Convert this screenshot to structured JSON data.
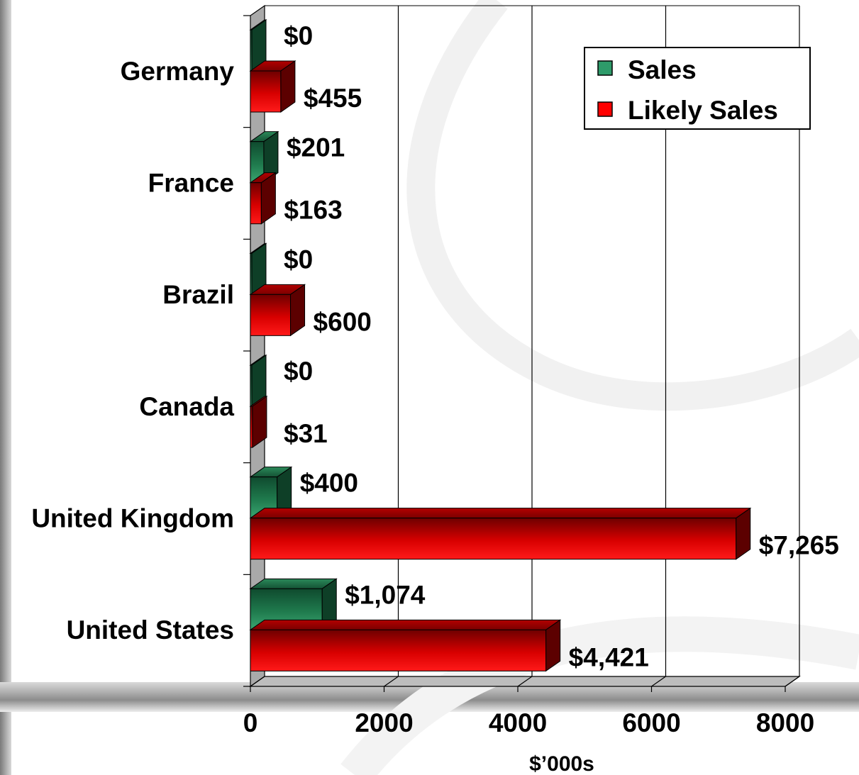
{
  "chart_data": {
    "type": "bar",
    "orientation": "horizontal",
    "categories": [
      "Germany",
      "France",
      "Brazil",
      "Canada",
      "United Kingdom",
      "United States"
    ],
    "series": [
      {
        "name": "Sales",
        "color": "#1f8f5a",
        "values": [
          0,
          201,
          0,
          0,
          400,
          1074
        ],
        "labels": [
          "$0",
          "$201",
          "$0",
          "$0",
          "$400",
          "$1,074"
        ]
      },
      {
        "name": "Likely Sales",
        "color": "#ff0000",
        "values": [
          455,
          163,
          600,
          31,
          7265,
          4421
        ],
        "labels": [
          "$455",
          "$163",
          "$600",
          "$31",
          "$7,265",
          "$4,421"
        ]
      }
    ],
    "xlabel": "$’000s",
    "xlim": [
      0,
      8000
    ],
    "xticks": [
      "0",
      "2000",
      "4000",
      "6000",
      "8000"
    ],
    "grid": "vertical",
    "legend_position": "top-right"
  }
}
